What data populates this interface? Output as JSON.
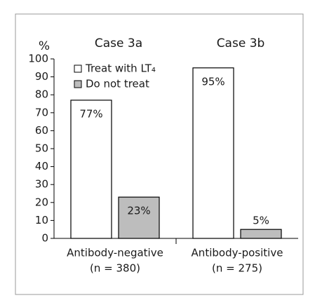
{
  "chart_data": {
    "type": "bar",
    "y_label": "%",
    "group_titles": [
      "Case 3a",
      "Case 3b"
    ],
    "categories": [
      [
        "Antibody-negative",
        "(n = 380)"
      ],
      [
        "Antibody-positive",
        "(n = 275)"
      ]
    ],
    "series": [
      {
        "name": "Treat with LT₄",
        "color": "#ffffff",
        "values": [
          77,
          95
        ],
        "value_labels": [
          "77%",
          "95%"
        ]
      },
      {
        "name": "Do not treat",
        "color": "#bdbdbd",
        "values": [
          23,
          5
        ],
        "value_labels": [
          "23%",
          "5%"
        ]
      }
    ],
    "ylim": [
      0,
      100
    ],
    "yticks": [
      0,
      10,
      20,
      30,
      40,
      50,
      60,
      70,
      80,
      90,
      100
    ],
    "grid": false
  }
}
